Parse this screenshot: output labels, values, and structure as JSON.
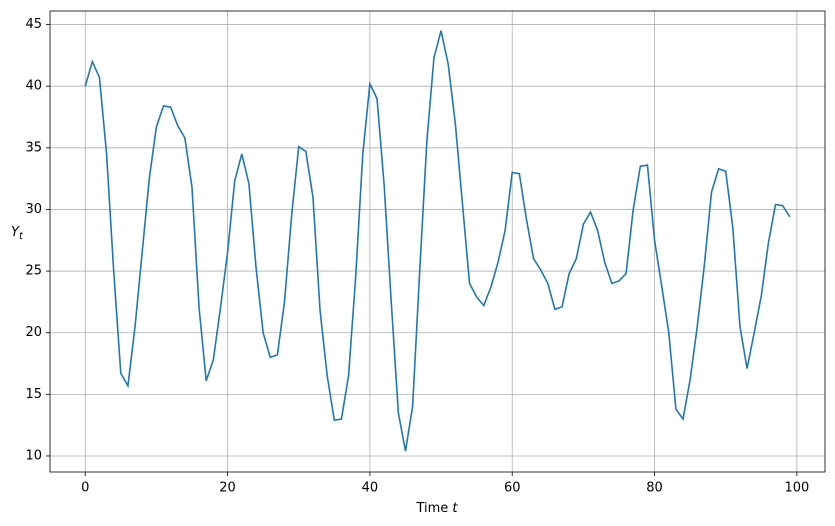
{
  "chart_data": {
    "type": "line",
    "xlabel": {
      "text": "Time ",
      "italic": "t"
    },
    "ylabel": {
      "text": "Y",
      "subscript": "t"
    },
    "x": [
      0,
      1,
      2,
      3,
      4,
      5,
      6,
      7,
      8,
      9,
      10,
      11,
      12,
      13,
      14,
      15,
      16,
      17,
      18,
      19,
      20,
      21,
      22,
      23,
      24,
      25,
      26,
      27,
      28,
      29,
      30,
      31,
      32,
      33,
      34,
      35,
      36,
      37,
      38,
      39,
      40,
      41,
      42,
      43,
      44,
      45,
      46,
      47,
      48,
      49,
      50,
      51,
      52,
      53,
      54,
      55,
      56,
      57,
      58,
      59,
      60,
      61,
      62,
      63,
      64,
      65,
      66,
      67,
      68,
      69,
      70,
      71,
      72,
      73,
      74,
      75,
      76,
      77,
      78,
      79,
      80,
      81,
      82,
      83,
      84,
      85,
      86,
      87,
      88,
      89,
      90,
      91,
      92,
      93,
      94,
      95,
      96,
      97,
      98,
      99
    ],
    "series": [
      {
        "color": "#1f77b4",
        "values": [
          40,
          42,
          40.7,
          34.5,
          25,
          16.7,
          15.7,
          20.5,
          26.5,
          32.5,
          36.7,
          38.4,
          38.3,
          36.8,
          35.8,
          31.8,
          22,
          16.1,
          17.8,
          22,
          26.5,
          32.3,
          34.5,
          32.1,
          25.3,
          20,
          18,
          18.2,
          22.5,
          29.5,
          35.1,
          34.7,
          31,
          21.8,
          16.5,
          12.9,
          13,
          16.5,
          24.5,
          34.5,
          40.2,
          39,
          32,
          22.5,
          13.5,
          10.4,
          14,
          25,
          35.5,
          42.3,
          44.5,
          41.8,
          37,
          30.5,
          24,
          22.9,
          22.2,
          23.7,
          25.7,
          28.3,
          33,
          32.9,
          29.2,
          26,
          25.1,
          24,
          21.9,
          22.1,
          24.8,
          26,
          28.8,
          29.8,
          28.3,
          25.7,
          24,
          24.2,
          24.8,
          30,
          33.5,
          33.6,
          27.5,
          23.8,
          20,
          13.8,
          13,
          16.2,
          20.5,
          25.5,
          31.4,
          33.3,
          33.1,
          28.5,
          20.5,
          17.1,
          20,
          23,
          27.3,
          30.4,
          30.3,
          29.4
        ]
      }
    ],
    "xlim": [
      -4.95,
      103.95
    ],
    "xticks": [
      0,
      20,
      40,
      60,
      80,
      100
    ],
    "ylim": [
      8.7,
      46.1
    ],
    "yticks": [
      10,
      15,
      20,
      25,
      30,
      35,
      40,
      45
    ],
    "grid": true
  }
}
